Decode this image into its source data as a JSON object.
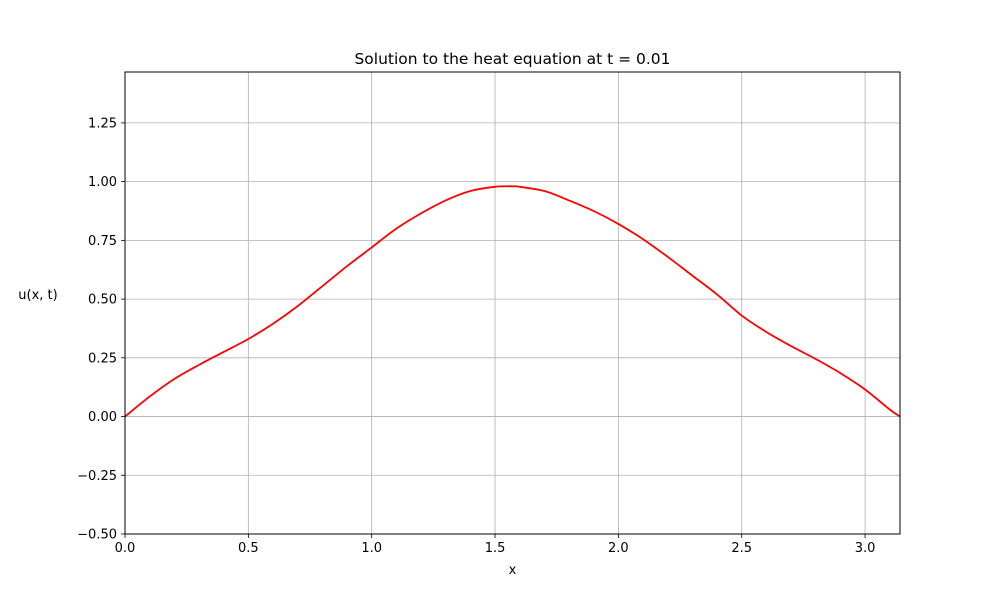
{
  "chart_data": {
    "type": "line",
    "title": "Solution to the heat equation at t = 0.01",
    "xlabel": "x",
    "ylabel": "u(x, t)",
    "xlim": [
      0,
      3.14159
    ],
    "ylim": [
      -0.5,
      1.4667
    ],
    "grid": true,
    "x_ticks": [
      0.0,
      0.5,
      1.0,
      1.5,
      2.0,
      2.5,
      3.0
    ],
    "x_tick_labels": [
      "0.0",
      "0.5",
      "1.0",
      "1.5",
      "2.0",
      "2.5",
      "3.0"
    ],
    "y_ticks": [
      -0.5,
      -0.25,
      0.0,
      0.25,
      0.5,
      0.75,
      1.0,
      1.25
    ],
    "y_tick_labels": [
      "−0.50",
      "−0.25",
      "0.00",
      "0.25",
      "0.50",
      "0.75",
      "1.00",
      "1.25"
    ],
    "series": [
      {
        "color": "#ff0000",
        "x": [
          0.0,
          0.1,
          0.2,
          0.3,
          0.4,
          0.5,
          0.6,
          0.7,
          0.8,
          0.9,
          1.0,
          1.1,
          1.2,
          1.3,
          1.4,
          1.5,
          1.57,
          1.6,
          1.7,
          1.8,
          1.9,
          2.0,
          2.1,
          2.2,
          2.3,
          2.4,
          2.5,
          2.6,
          2.7,
          2.8,
          2.9,
          3.0,
          3.1,
          3.14159
        ],
        "y": [
          0.0,
          0.085,
          0.16,
          0.22,
          0.275,
          0.33,
          0.395,
          0.47,
          0.555,
          0.64,
          0.72,
          0.8,
          0.865,
          0.92,
          0.96,
          0.978,
          0.98,
          0.978,
          0.96,
          0.92,
          0.875,
          0.82,
          0.755,
          0.68,
          0.6,
          0.52,
          0.43,
          0.36,
          0.3,
          0.245,
          0.185,
          0.115,
          0.03,
          0.0
        ]
      }
    ]
  }
}
